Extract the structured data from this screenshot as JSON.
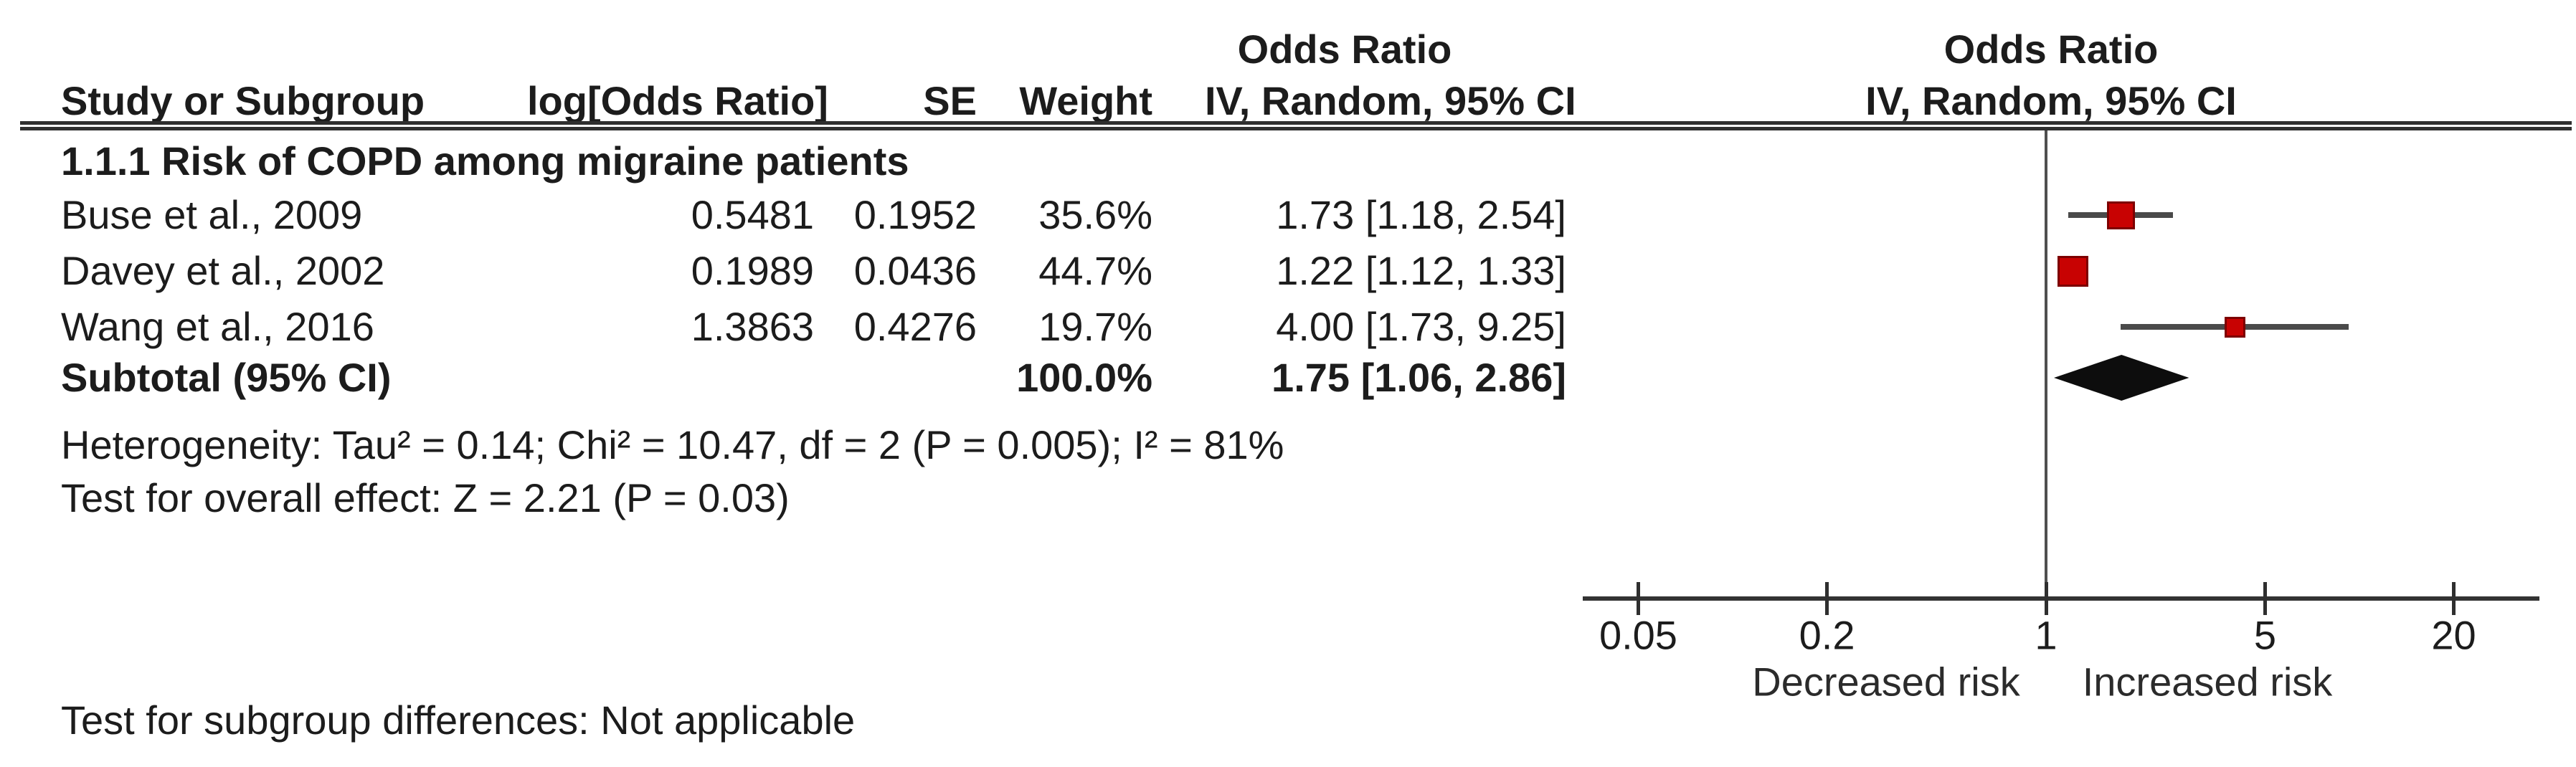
{
  "table": {
    "or_header": "Odds Ratio",
    "columns": {
      "study": "Study or Subgroup",
      "log_or": "log[Odds Ratio]",
      "se": "SE",
      "weight": "Weight",
      "ci": "IV, Random, 95% CI"
    },
    "subgroup_title": "1.1.1 Risk of COPD among migraine patients",
    "rows": [
      {
        "study": "Buse et al., 2009",
        "log_or": "0.5481",
        "se": "0.1952",
        "weight": "35.6%",
        "ci_text": "1.73 [1.18, 2.54]"
      },
      {
        "study": "Davey et al., 2002",
        "log_or": "0.1989",
        "se": "0.0436",
        "weight": "44.7%",
        "ci_text": "1.22 [1.12, 1.33]"
      },
      {
        "study": "Wang et al., 2016",
        "log_or": "1.3863",
        "se": "0.4276",
        "weight": "19.7%",
        "ci_text": "4.00 [1.73, 9.25]"
      }
    ],
    "subtotal": {
      "label": "Subtotal (95% CI)",
      "weight": "100.0%",
      "ci_text": "1.75 [1.06, 2.86]"
    },
    "heterogeneity_text": "Heterogeneity: Tau² = 0.14; Chi² = 10.47, df = 2 (P = 0.005); I² = 81%",
    "overall_effect_text": "Test for overall effect: Z = 2.21 (P = 0.03)",
    "subgroup_diff_text": "Test for subgroup differences: Not applicable"
  },
  "plot": {
    "header_line1": "Odds Ratio",
    "header_line2": "IV, Random, 95% CI",
    "left_label": "Decreased risk",
    "right_label": "Increased risk",
    "marker_color": "#c80202",
    "marker_border_color": "#7d0000",
    "diamond_color": "#0d0d0d",
    "line_color": "#4a4a4a"
  },
  "chart_data": {
    "type": "forest",
    "effect_measure": "Odds Ratio",
    "model": "IV, Random, 95% CI",
    "x_scale": "log",
    "x_ticks": [
      0.05,
      0.2,
      1,
      5,
      20
    ],
    "x_tick_labels": [
      "0.05",
      "0.2",
      "1",
      "5",
      "20"
    ],
    "null_value": 1,
    "axis_annotations": [
      "Decreased risk",
      "Increased risk"
    ],
    "subgroup": "1.1.1 Risk of COPD among migraine patients",
    "studies": [
      {
        "name": "Buse et al., 2009",
        "log_or": 0.5481,
        "se": 0.1952,
        "weight_pct": 35.6,
        "or": 1.73,
        "ci_low": 1.18,
        "ci_high": 2.54
      },
      {
        "name": "Davey et al., 2002",
        "log_or": 0.1989,
        "se": 0.0436,
        "weight_pct": 44.7,
        "or": 1.22,
        "ci_low": 1.12,
        "ci_high": 1.33
      },
      {
        "name": "Wang et al., 2016",
        "log_or": 1.3863,
        "se": 0.4276,
        "weight_pct": 19.7,
        "or": 4.0,
        "ci_low": 1.73,
        "ci_high": 9.25
      }
    ],
    "subtotal": {
      "or": 1.75,
      "ci_low": 1.06,
      "ci_high": 2.86,
      "weight_pct": 100.0
    },
    "heterogeneity": {
      "tau2": 0.14,
      "chi2": 10.47,
      "df": 2,
      "p": 0.005,
      "i2_pct": 81
    },
    "overall_effect": {
      "z": 2.21,
      "p": 0.03
    },
    "subgroup_difference": "Not applicable"
  }
}
